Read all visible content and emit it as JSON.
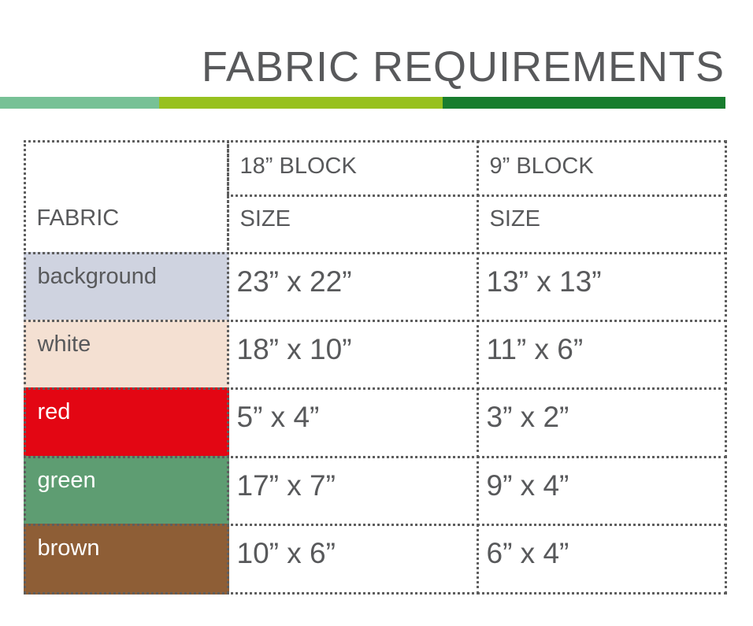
{
  "title": "FABRIC REQUIREMENTS",
  "stripe_colors": [
    "#77c196",
    "#97c11f",
    "#187d2e"
  ],
  "header": {
    "fabric": "FABRIC",
    "col1_top": "18” BLOCK",
    "col1_sub": "SIZE",
    "col2_top": "9” BLOCK",
    "col2_sub": "SIZE"
  },
  "rows": [
    {
      "fabric": "background",
      "color": "#cfd3e0",
      "text_color": "#58595b",
      "block18": "23” x 22”",
      "block9": "13” x 13”"
    },
    {
      "fabric": "white",
      "color": "#f4e0d2",
      "text_color": "#58595b",
      "block18": "18” x 10”",
      "block9": "11” x 6”"
    },
    {
      "fabric": "red",
      "color": "#e30613",
      "text_color": "#ffffff",
      "block18": "5” x 4”",
      "block9": "3” x 2”"
    },
    {
      "fabric": "green",
      "color": "#5e9d72",
      "text_color": "#ffffff",
      "block18": "17” x 7”",
      "block9": "9” x 4”"
    },
    {
      "fabric": "brown",
      "color": "#8e5e36",
      "text_color": "#ffffff",
      "block18": "10” x 6”",
      "block9": "6” x 4”"
    }
  ]
}
